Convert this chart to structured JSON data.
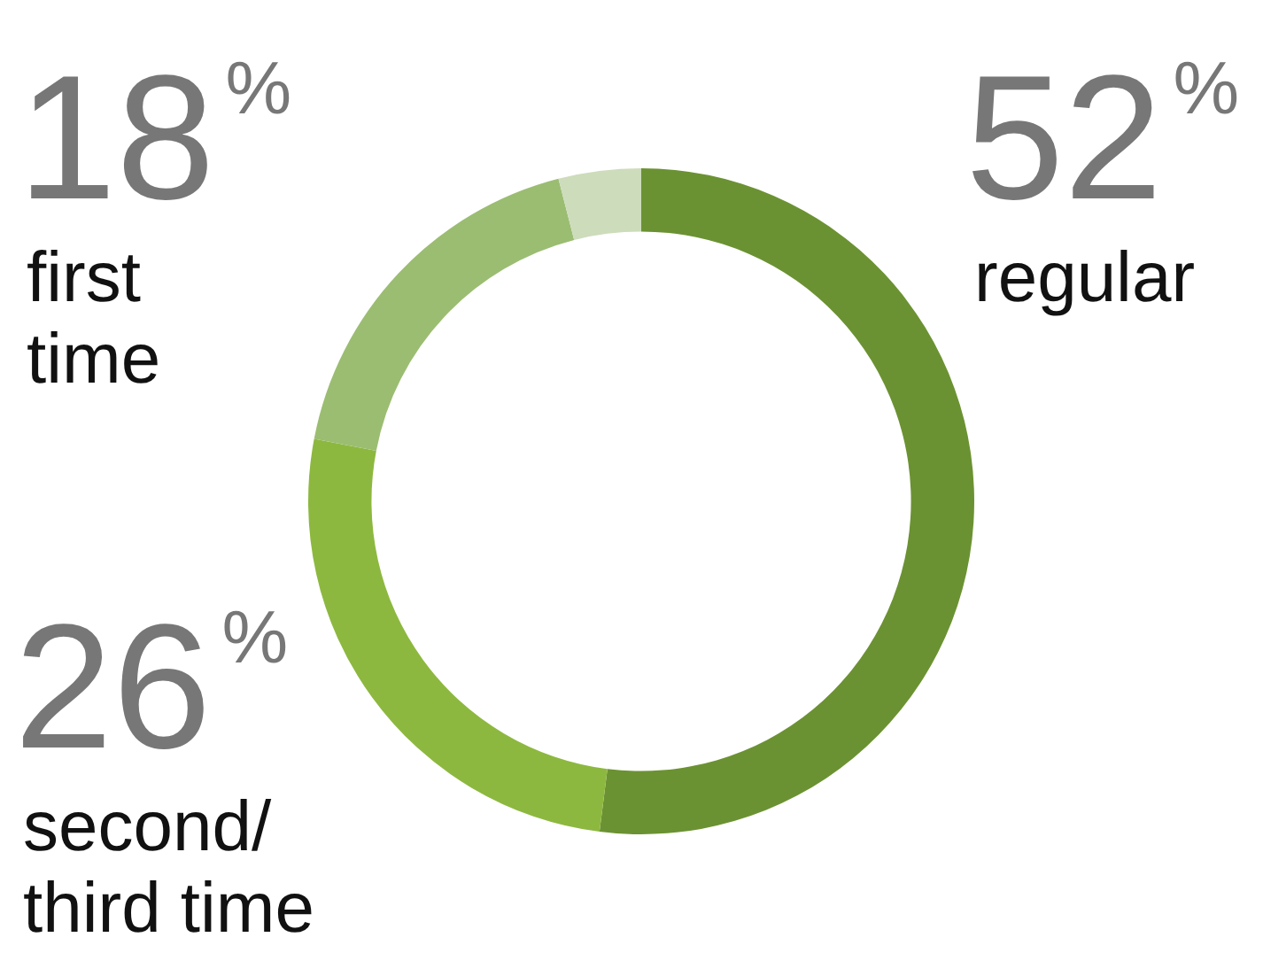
{
  "chart_data": {
    "type": "donut",
    "categories": [
      "regular",
      "second/\nthird time",
      "first\ntime",
      null
    ],
    "values": [
      52,
      26,
      18,
      4
    ],
    "colors": [
      "#6b9232",
      "#8db83f",
      "#9bbd72",
      "#cddcbb"
    ],
    "value_labels": [
      "52$^{%}$",
      "26$^{%}$",
      "18$^{%}$",
      null
    ],
    "legend": false
  }
}
